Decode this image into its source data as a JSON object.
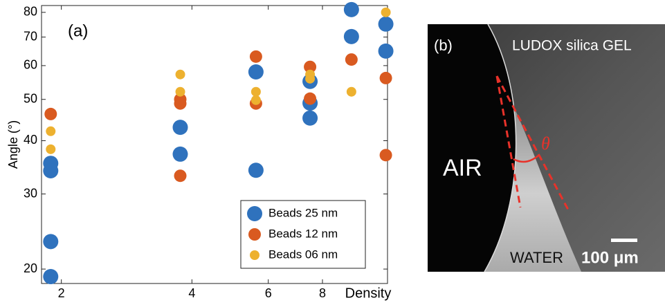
{
  "chart_data": {
    "type": "scatter",
    "panel_label": "(a)",
    "y_label": "Angle (°)",
    "x_label": "Density",
    "xlog": true,
    "ylog": true,
    "xlim": [
      1.8,
      11.3
    ],
    "ylim": [
      18.5,
      83
    ],
    "xticks": [
      2,
      4,
      6,
      8
    ],
    "yticks": [
      20,
      30,
      40,
      50,
      60,
      70,
      80
    ],
    "legend": "lower right",
    "series": [
      {
        "name": "Beads 25 nm",
        "color": "#2f72bd",
        "x": [
          1.89,
          1.89,
          1.89,
          1.89,
          3.76,
          3.76,
          5.62,
          5.62,
          7.49,
          7.49,
          7.49,
          9.33,
          9.33,
          11.2,
          11.2
        ],
        "values": [
          35.4,
          34.0,
          23.2,
          19.2,
          43.0,
          37.2,
          34.1,
          58.0,
          55.1,
          49.0,
          45.2,
          81.2,
          70.2,
          75.1,
          64.9
        ]
      },
      {
        "name": "Beads 12 nm",
        "color": "#d95a20",
        "x": [
          1.89,
          3.76,
          3.76,
          3.76,
          5.62,
          5.62,
          7.49,
          7.49,
          9.33,
          11.2,
          11.2
        ],
        "values": [
          46.2,
          50.0,
          48.9,
          33.1,
          63.0,
          48.9,
          59.6,
          50.2,
          62.0,
          56.1,
          37.0
        ]
      },
      {
        "name": "Beads 06 nm",
        "color": "#edb12f",
        "x": [
          1.89,
          1.89,
          3.76,
          3.76,
          5.62,
          5.62,
          7.49,
          7.49,
          9.33,
          11.2
        ],
        "values": [
          42.1,
          38.2,
          57.2,
          52.1,
          52.1,
          49.8,
          57.2,
          55.9,
          52.1,
          80
        ]
      }
    ]
  },
  "panel_b": {
    "panel_label": "(b)",
    "material": "LUDOX silica GEL",
    "air": "AIR",
    "angle": "θ",
    "water": "WATER",
    "scale": "100 μm"
  }
}
